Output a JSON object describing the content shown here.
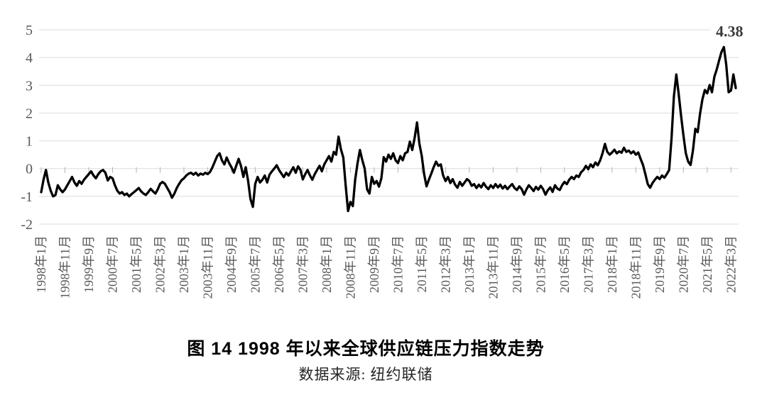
{
  "figure": {
    "title": "图 14 1998 年以来全球供应链压力指数走势",
    "source": "数据来源: 纽约联储",
    "peak_annotation": "4.38"
  },
  "chart_data": {
    "type": "line",
    "title": "图 14 1998 年以来全球供应链压力指数走势",
    "source": "数据来源: 纽约联储",
    "series_name": "全球供应链压力指数",
    "line_color": "#000000",
    "grid_color": "#dbdbdb",
    "tick_color": "#b3b3b3",
    "tick_label_color": "#595959",
    "grid_on": true,
    "legend": "none",
    "ylim": [
      -2,
      5
    ],
    "yticks": [
      5,
      4,
      3,
      2,
      1,
      0,
      -1,
      -2
    ],
    "x_start": "1998-01",
    "x_end": "2022-05",
    "x_freq": "monthly",
    "n_points": 293,
    "xtick_interval_months": 10,
    "xtick_labels": [
      "1998年1月",
      "1998年11月",
      "1999年9月",
      "2000年7月",
      "2001年5月",
      "2002年3月",
      "2003年1月",
      "2003年11月",
      "2004年9月",
      "2005年7月",
      "2006年5月",
      "2007年3月",
      "2008年1月",
      "2008年11月",
      "2009年9月",
      "2010年7月",
      "2011年5月",
      "2012年3月",
      "2013年1月",
      "2013年11月",
      "2014年9月",
      "2015年7月",
      "2016年5月",
      "2017年3月",
      "2018年1月",
      "2018年11月",
      "2019年9月",
      "2020年7月",
      "2021年5月",
      "2022年3月"
    ],
    "annotation": {
      "text": "4.38",
      "x": "2021-12",
      "y": 4.38
    },
    "values": [
      -0.85,
      -0.4,
      -0.05,
      -0.5,
      -0.8,
      -1.0,
      -0.95,
      -0.6,
      -0.75,
      -0.85,
      -0.75,
      -0.6,
      -0.45,
      -0.3,
      -0.5,
      -0.62,
      -0.45,
      -0.55,
      -0.4,
      -0.3,
      -0.2,
      -0.1,
      -0.25,
      -0.35,
      -0.2,
      -0.1,
      -0.05,
      -0.15,
      -0.43,
      -0.3,
      -0.35,
      -0.6,
      -0.8,
      -0.9,
      -0.85,
      -0.95,
      -0.9,
      -1.0,
      -0.92,
      -0.85,
      -0.78,
      -0.7,
      -0.82,
      -0.9,
      -0.95,
      -0.85,
      -0.73,
      -0.82,
      -0.9,
      -0.75,
      -0.55,
      -0.48,
      -0.55,
      -0.7,
      -0.85,
      -1.05,
      -0.9,
      -0.7,
      -0.55,
      -0.42,
      -0.35,
      -0.25,
      -0.18,
      -0.15,
      -0.22,
      -0.15,
      -0.25,
      -0.18,
      -0.22,
      -0.15,
      -0.2,
      -0.12,
      0.05,
      0.25,
      0.45,
      0.55,
      0.3,
      0.15,
      0.4,
      0.2,
      0.05,
      -0.15,
      0.1,
      0.35,
      0.1,
      -0.3,
      0.05,
      -0.45,
      -1.1,
      -1.38,
      -0.55,
      -0.3,
      -0.5,
      -0.4,
      -0.25,
      -0.5,
      -0.22,
      -0.1,
      0.0,
      0.12,
      -0.05,
      -0.18,
      -0.31,
      -0.15,
      -0.25,
      -0.1,
      0.05,
      -0.15,
      0.08,
      -0.05,
      -0.39,
      -0.2,
      -0.05,
      -0.25,
      -0.4,
      -0.2,
      -0.05,
      0.1,
      -0.1,
      0.15,
      0.3,
      0.45,
      0.25,
      0.6,
      0.5,
      1.15,
      0.7,
      0.4,
      -0.6,
      -1.53,
      -1.2,
      -1.35,
      -0.4,
      0.2,
      0.67,
      0.3,
      0.0,
      -0.75,
      -0.9,
      -0.3,
      -0.55,
      -0.45,
      -0.65,
      -0.35,
      0.41,
      0.25,
      0.5,
      0.35,
      0.55,
      0.3,
      0.2,
      0.45,
      0.3,
      0.55,
      0.6,
      0.97,
      0.67,
      1.1,
      1.66,
      0.9,
      0.45,
      -0.2,
      -0.64,
      -0.4,
      -0.18,
      0.05,
      0.25,
      0.1,
      0.15,
      -0.25,
      -0.45,
      -0.3,
      -0.52,
      -0.38,
      -0.58,
      -0.69,
      -0.48,
      -0.62,
      -0.5,
      -0.38,
      -0.45,
      -0.62,
      -0.56,
      -0.7,
      -0.58,
      -0.68,
      -0.52,
      -0.65,
      -0.74,
      -0.6,
      -0.7,
      -0.56,
      -0.68,
      -0.58,
      -0.72,
      -0.62,
      -0.74,
      -0.64,
      -0.56,
      -0.7,
      -0.77,
      -0.64,
      -0.74,
      -0.94,
      -0.75,
      -0.6,
      -0.7,
      -0.81,
      -0.66,
      -0.76,
      -0.62,
      -0.74,
      -0.94,
      -0.78,
      -0.68,
      -0.84,
      -0.6,
      -0.72,
      -0.77,
      -0.6,
      -0.48,
      -0.56,
      -0.4,
      -0.3,
      -0.38,
      -0.25,
      -0.3,
      -0.13,
      -0.05,
      0.1,
      -0.02,
      0.15,
      0.05,
      0.22,
      0.12,
      0.3,
      0.55,
      0.89,
      0.6,
      0.5,
      0.58,
      0.68,
      0.55,
      0.62,
      0.57,
      0.75,
      0.6,
      0.65,
      0.55,
      0.62,
      0.5,
      0.58,
      0.35,
      0.13,
      -0.2,
      -0.56,
      -0.69,
      -0.52,
      -0.4,
      -0.3,
      -0.38,
      -0.25,
      -0.33,
      -0.2,
      -0.05,
      1.1,
      2.6,
      3.39,
      2.7,
      1.9,
      1.2,
      0.55,
      0.25,
      0.13,
      0.65,
      1.43,
      1.31,
      1.99,
      2.5,
      2.83,
      2.71,
      3.01,
      2.75,
      3.31,
      3.57,
      3.9,
      4.2,
      4.38,
      3.74,
      2.75,
      2.81,
      3.39,
      2.9
    ]
  }
}
